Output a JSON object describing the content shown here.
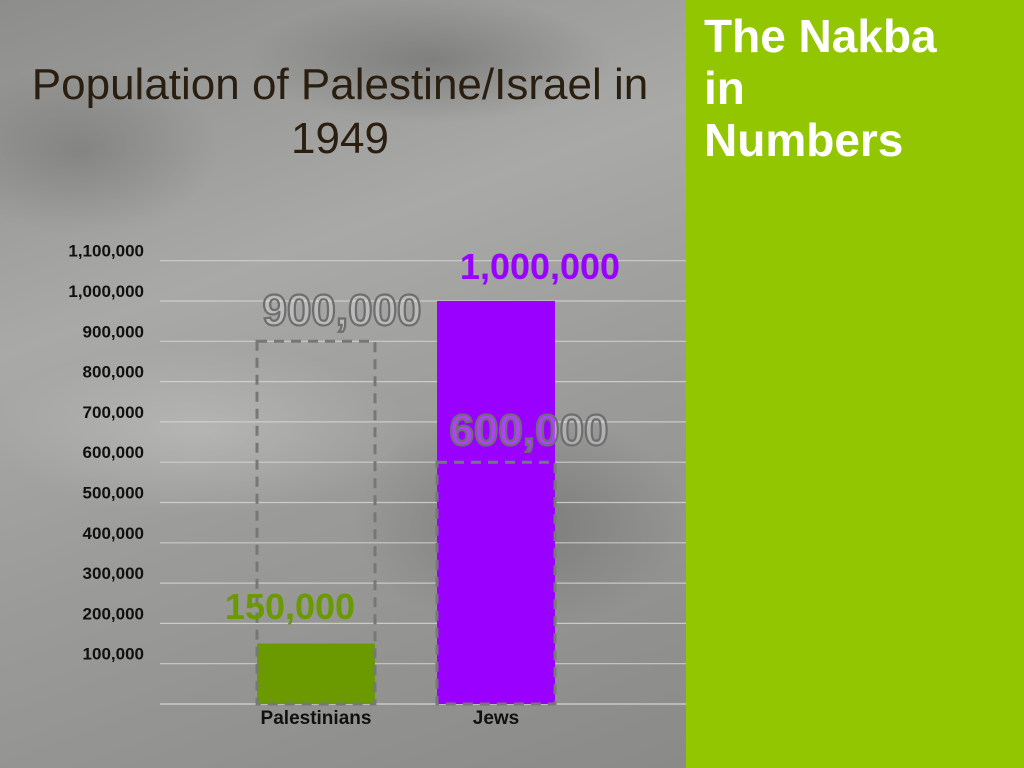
{
  "sidebar": {
    "title_lines": [
      "The Nakba",
      "in",
      "Numbers"
    ],
    "background_color": "#92c600",
    "text_color": "#ffffff"
  },
  "chart_data": {
    "type": "bar",
    "title": "Population of Palestine/Israel in 1949",
    "xlabel": "",
    "ylabel": "",
    "categories": [
      "Palestinians",
      "Jews"
    ],
    "values": [
      150000,
      1000000
    ],
    "value_labels": [
      "150,000",
      "1,000,000"
    ],
    "colors": [
      "#6a9a00",
      "#9900ff"
    ],
    "label_colors": [
      "#6a9a00",
      "#9900ff"
    ],
    "reference_values": [
      900000,
      600000
    ],
    "reference_labels": [
      "900,000",
      "600,000"
    ],
    "y_tick_values": [
      100000,
      200000,
      300000,
      400000,
      500000,
      600000,
      700000,
      800000,
      900000,
      1000000,
      1100000
    ],
    "y_tick_labels": [
      "100,000",
      "200,000",
      "300,000",
      "400,000",
      "500,000",
      "600,000",
      "700,000",
      "800,000",
      "900,000",
      "1,000,000",
      "1,100,000"
    ],
    "ylim": [
      0,
      1100000
    ],
    "grid": true
  }
}
